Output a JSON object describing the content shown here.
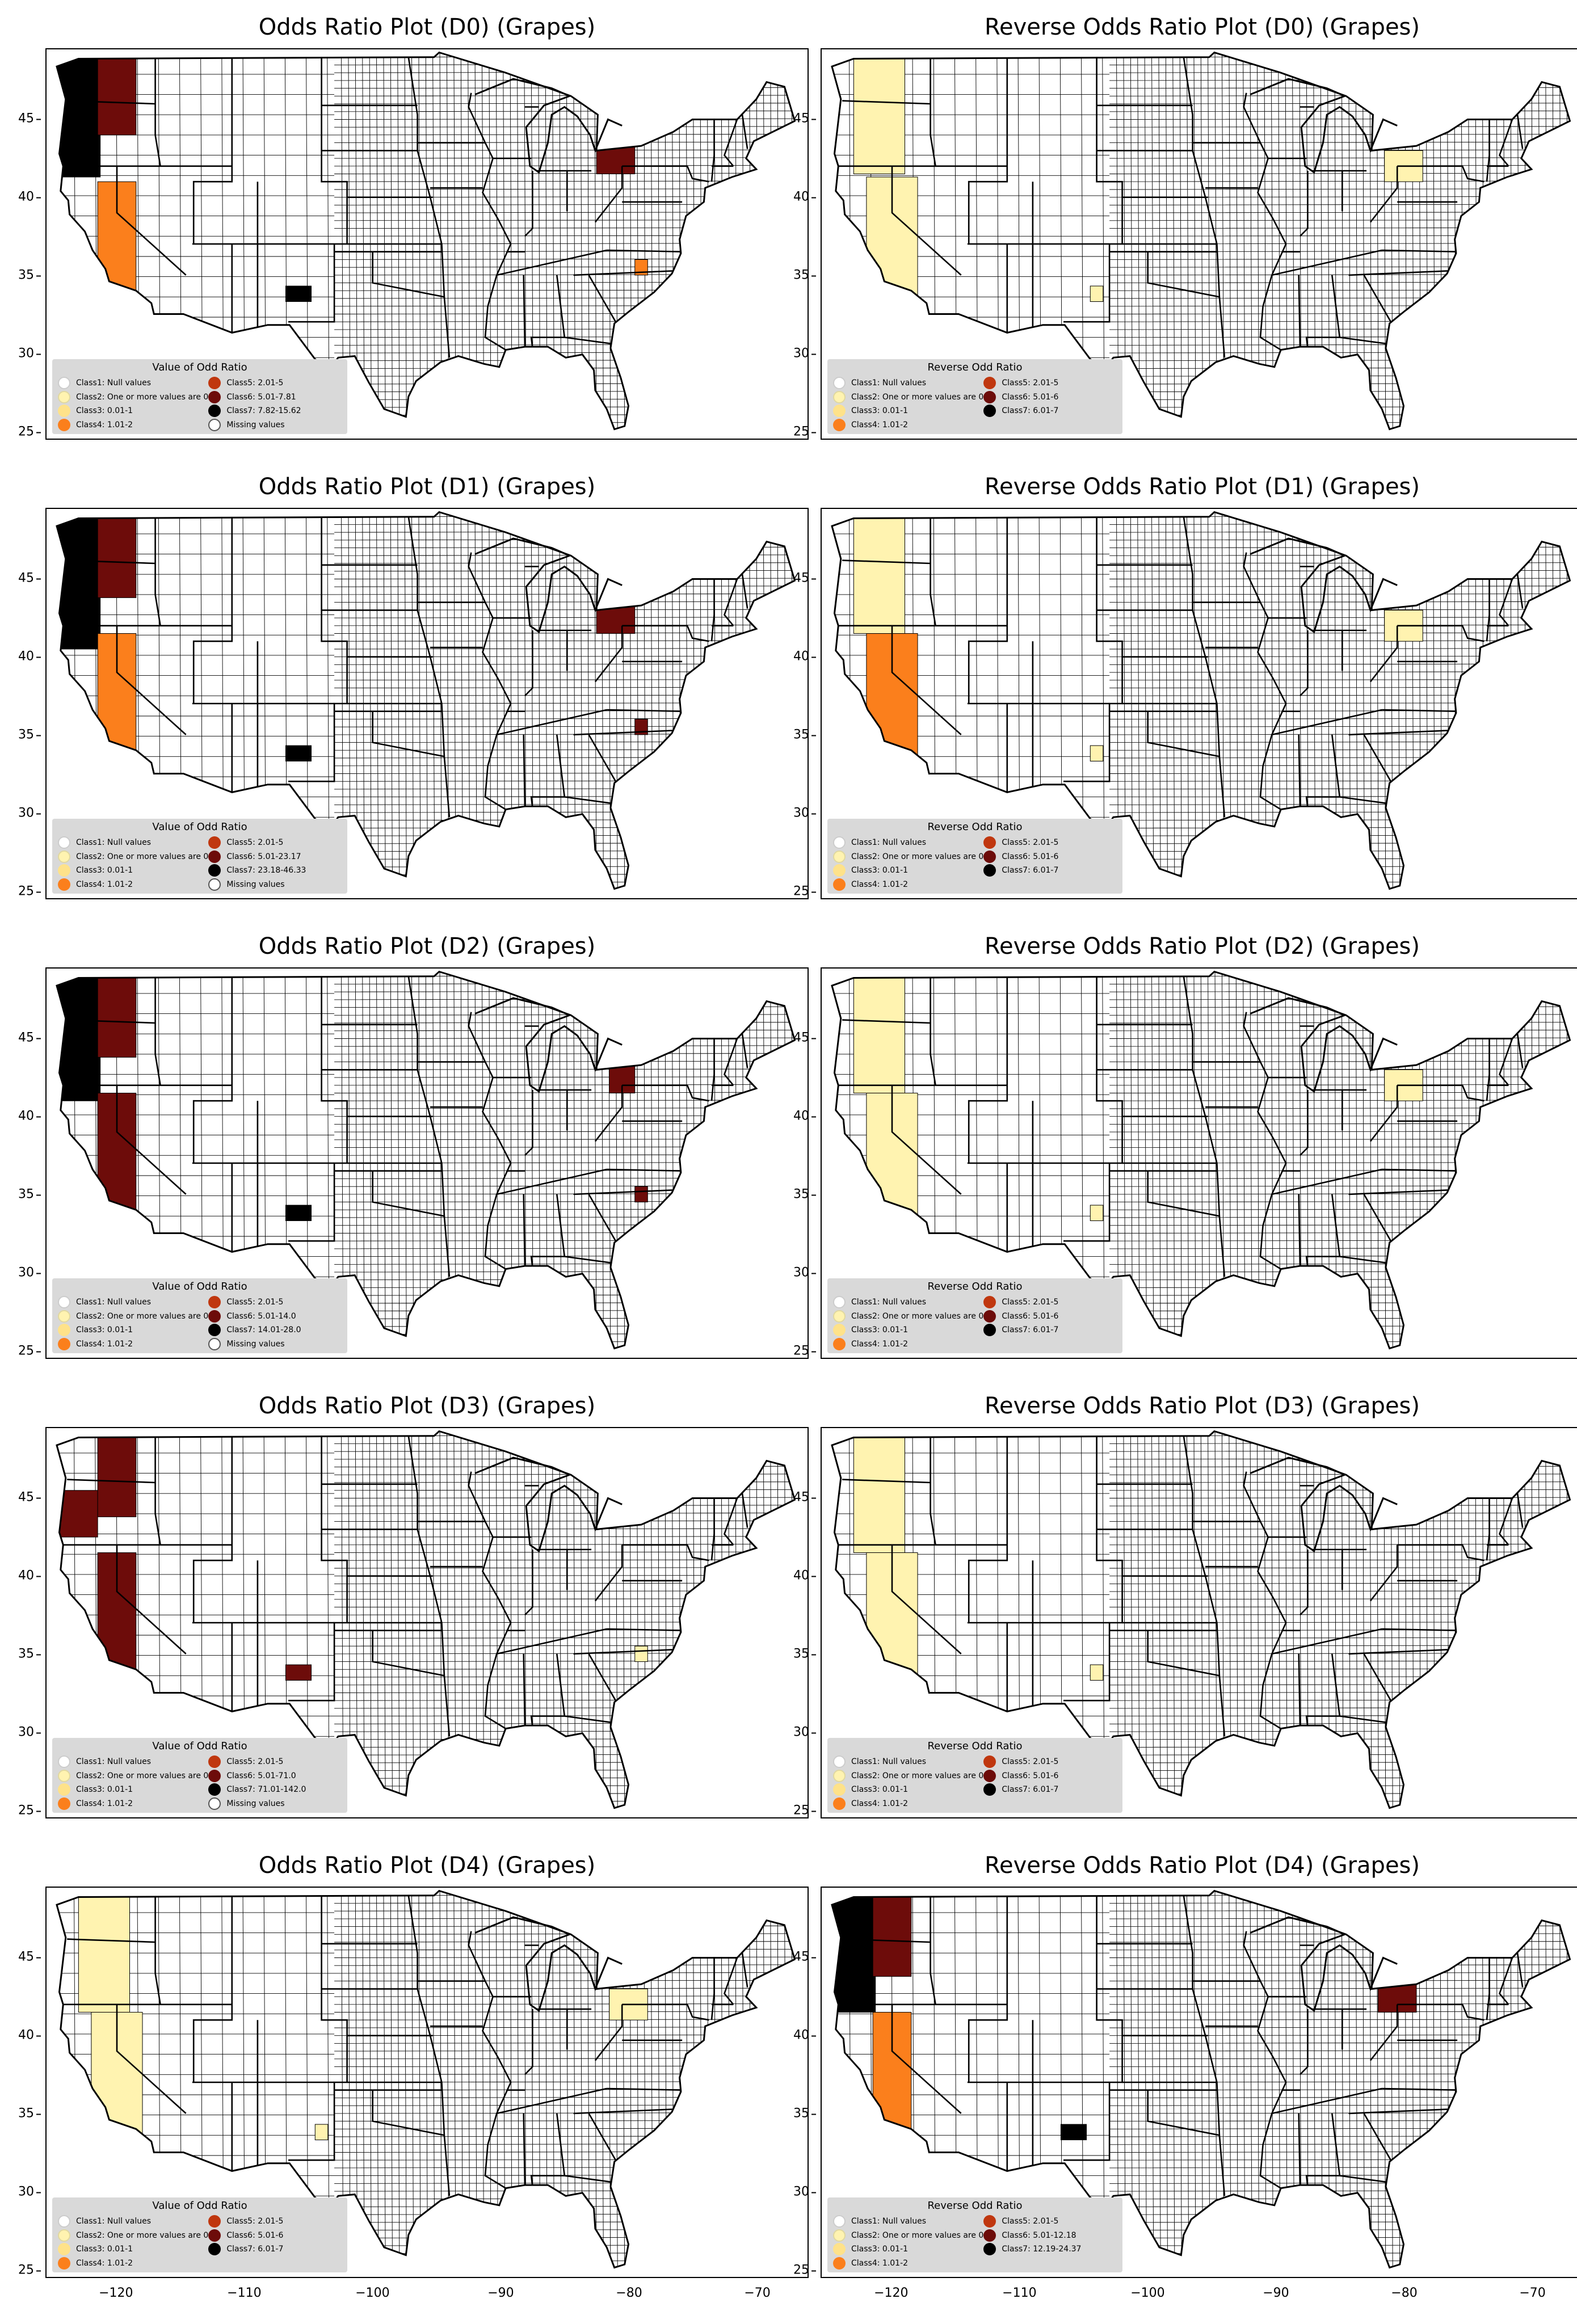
{
  "panels": [
    {
      "id": "d0-odds",
      "title": "Odds Ratio Plot (D0) (Grapes)",
      "legend_title": "Value of Odd Ratio",
      "classes": [
        "Class1: Null values",
        "Class2: One or more values are 0",
        "Class3: 0.01-1",
        "Class4: 1.01-2",
        "Class5: 2.01-5",
        "Class6: 5.01-7.81",
        "Class7: 7.82-15.62",
        "Missing values"
      ],
      "highlight": [
        [
          "black",
          -123.8,
          46.3,
          5,
          10
        ],
        [
          "darkred",
          -120,
          47,
          3,
          6
        ],
        [
          "orange",
          -120,
          36.5,
          3,
          9
        ],
        [
          "darkred",
          -81,
          42.5,
          3,
          2
        ],
        [
          "orange",
          -79,
          35.5,
          1,
          1
        ],
        [
          "black",
          -105.8,
          33.8,
          2,
          1
        ]
      ]
    },
    {
      "id": "d0-reverse",
      "title": "Reverse Odds Ratio Plot (D0) (Grapes)",
      "legend_title": "Reverse Odd Ratio",
      "classes": [
        "Class1: Null values",
        "Class2: One or more values are 0",
        "Class3: 0.01-1",
        "Class4: 1.01-2",
        "Class5: 2.01-5",
        "Class6: 5.01-6",
        "Class7: 6.01-7"
      ],
      "highlight": [
        [
          "lightyellow",
          -121,
          45.5,
          4,
          8
        ],
        [
          "lightyellow",
          -120,
          36.8,
          4,
          9
        ],
        [
          "lightyellow",
          -80,
          42,
          3,
          2
        ],
        [
          "lightyellow",
          -104,
          33.8,
          1,
          1
        ]
      ]
    },
    {
      "id": "d1-odds",
      "title": "Odds Ratio Plot (D1) (Grapes)",
      "legend_title": "Value of Odd Ratio",
      "classes": [
        "Class1: Null values",
        "Class2: One or more values are 0",
        "Class3: 0.01-1",
        "Class4: 1.01-2",
        "Class5: 2.01-5",
        "Class6: 5.01-23.17",
        "Class7: 23.18-46.33",
        "Missing values"
      ],
      "highlight": [
        [
          "black",
          -123.8,
          45.5,
          5,
          10
        ],
        [
          "darkred",
          -120,
          46.8,
          3,
          6
        ],
        [
          "orange",
          -120,
          37,
          3,
          9
        ],
        [
          "darkred",
          -81,
          42.5,
          3,
          2
        ],
        [
          "darkred",
          -79,
          35.5,
          1,
          1
        ],
        [
          "black",
          -105.8,
          33.8,
          2,
          1
        ]
      ]
    },
    {
      "id": "d1-reverse",
      "title": "Reverse Odds Ratio Plot (D1) (Grapes)",
      "legend_title": "Reverse Odd Ratio",
      "classes": [
        "Class1: Null values",
        "Class2: One or more values are 0",
        "Class3: 0.01-1",
        "Class4: 1.01-2",
        "Class5: 2.01-5",
        "Class6: 5.01-6",
        "Class7: 6.01-7"
      ],
      "highlight": [
        [
          "lightyellow",
          -121,
          45.5,
          4,
          8
        ],
        [
          "orange",
          -120,
          37,
          4,
          9
        ],
        [
          "lightyellow",
          -80,
          42,
          3,
          2
        ],
        [
          "lightyellow",
          -104,
          33.8,
          1,
          1
        ]
      ]
    },
    {
      "id": "d2-odds",
      "title": "Odds Ratio Plot (D2) (Grapes)",
      "legend_title": "Value of Odd Ratio",
      "classes": [
        "Class1: Null values",
        "Class2: One or more values are 0",
        "Class3: 0.01-1",
        "Class4: 1.01-2",
        "Class5: 2.01-5",
        "Class6: 5.01-14.0",
        "Class7: 14.01-28.0",
        "Missing values"
      ],
      "highlight": [
        [
          "black",
          -123.8,
          45,
          5,
          8
        ],
        [
          "darkred",
          -120,
          46.8,
          3,
          6
        ],
        [
          "darkred",
          -120,
          37,
          3,
          9
        ],
        [
          "darkred",
          -80.5,
          42.5,
          2,
          2
        ],
        [
          "darkred",
          -79,
          35,
          1,
          1
        ],
        [
          "black",
          -105.8,
          33.8,
          2,
          1
        ]
      ]
    },
    {
      "id": "d2-reverse",
      "title": "Reverse Odds Ratio Plot (D2) (Grapes)",
      "legend_title": "Reverse Odd Ratio",
      "classes": [
        "Class1: Null values",
        "Class2: One or more values are 0",
        "Class3: 0.01-1",
        "Class4: 1.01-2",
        "Class5: 2.01-5",
        "Class6: 5.01-6",
        "Class7: 6.01-7"
      ],
      "highlight": [
        [
          "lightyellow",
          -121,
          45.5,
          4,
          8
        ],
        [
          "lightyellow",
          -120,
          37,
          4,
          9
        ],
        [
          "lightyellow",
          -80,
          42,
          3,
          2
        ],
        [
          "lightyellow",
          -104,
          33.8,
          1,
          1
        ]
      ]
    },
    {
      "id": "d3-odds",
      "title": "Odds Ratio Plot (D3) (Grapes)",
      "legend_title": "Value of Odd Ratio",
      "classes": [
        "Class1: Null values",
        "Class2: One or more values are 0",
        "Class3: 0.01-1",
        "Class4: 1.01-2",
        "Class5: 2.01-5",
        "Class6: 5.01-71.0",
        "Class7: 71.01-142.0",
        "Missing values"
      ],
      "highlight": [
        [
          "darkred",
          -123.5,
          44,
          4,
          3
        ],
        [
          "darkred",
          -120,
          46.8,
          3,
          6
        ],
        [
          "darkred",
          -120,
          37,
          3,
          9
        ],
        [
          "lightyellow",
          -79,
          35,
          1,
          1
        ],
        [
          "darkred",
          -105.8,
          33.8,
          2,
          1
        ]
      ]
    },
    {
      "id": "d3-reverse",
      "title": "Reverse Odds Ratio Plot (D3) (Grapes)",
      "legend_title": "Reverse Odd Ratio",
      "classes": [
        "Class1: Null values",
        "Class2: One or more values are 0",
        "Class3: 0.01-1",
        "Class4: 1.01-2",
        "Class5: 2.01-5",
        "Class6: 5.01-6",
        "Class7: 6.01-7"
      ],
      "highlight": [
        [
          "lightyellow",
          -121,
          45.5,
          4,
          8
        ],
        [
          "lightyellow",
          -120,
          37,
          4,
          9
        ],
        [
          "lightyellow",
          -104,
          33.8,
          1,
          1
        ]
      ]
    },
    {
      "id": "d4-odds",
      "title": "Odds Ratio Plot (D4) (Grapes)",
      "legend_title": "Value of Odd Ratio",
      "classes": [
        "Class1: Null values",
        "Class2: One or more values are 0",
        "Class3: 0.01-1",
        "Class4: 1.01-2",
        "Class5: 2.01-5",
        "Class6: 5.01-6",
        "Class7: 6.01-7"
      ],
      "highlight": [
        [
          "lightyellow",
          -121,
          45.5,
          4,
          8
        ],
        [
          "lightyellow",
          -120,
          37,
          4,
          9
        ],
        [
          "lightyellow",
          -80,
          42,
          3,
          2
        ],
        [
          "lightyellow",
          -104,
          33.8,
          1,
          1
        ]
      ]
    },
    {
      "id": "d4-reverse",
      "title": "Reverse Odds Ratio Plot (D4) (Grapes)",
      "legend_title": "Reverse Odd Ratio",
      "classes": [
        "Class1: Null values",
        "Class2: One or more values are 0",
        "Class3: 0.01-1",
        "Class4: 1.01-2",
        "Class5: 2.01-5",
        "Class6: 5.01-12.18",
        "Class7: 12.19-24.37"
      ],
      "highlight": [
        [
          "black",
          -123.8,
          45.5,
          5,
          8
        ],
        [
          "darkred",
          -120,
          46.8,
          3,
          6
        ],
        [
          "orange",
          -120,
          37,
          3,
          9
        ],
        [
          "darkred",
          -80.5,
          42.5,
          3,
          2
        ],
        [
          "black",
          -105.8,
          33.8,
          2,
          1
        ]
      ]
    }
  ],
  "axes": {
    "y_ticks": [
      25,
      30,
      35,
      40,
      45
    ],
    "x_ticks": [
      -120,
      -110,
      -100,
      -90,
      -80,
      -70
    ],
    "x_tick_labels": [
      "−120",
      "−110",
      "−100",
      "−90",
      "−80",
      "−70"
    ],
    "xlim": [
      -125.5,
      -66
    ],
    "ylim": [
      24.5,
      49.5
    ]
  },
  "colors": {
    "white": "#ffffff",
    "lightyellow": "#fff3b0",
    "yellow": "#fee28a",
    "orange": "#fb7f1c",
    "red": "#c0370f",
    "darkred": "#6d0c0a",
    "black": "#000000",
    "legend_bg": "#d9d9d9"
  }
}
